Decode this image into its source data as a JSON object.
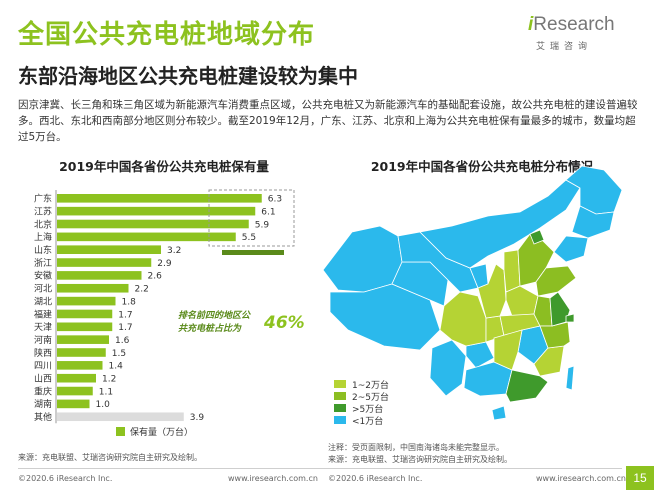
{
  "title": "全国公共充电桩地域分布",
  "subtitle": "东部沿海地区公共充电桩建设较为集中",
  "logo": {
    "main": "Research",
    "i": "i",
    "sub": "艾瑞咨询"
  },
  "description": "因京津冀、长三角和珠三角区域为新能源汽车消费重点区域，公共充电桩又为新能源汽车的基础配套设施，故公共充电桩的建设普遍较多。西北、东北和西南部分地区则分布较少。截至2019年12月，广东、江苏、北京和上海为公共充电桩保有量最多的城市，数量均超过5万台。",
  "bar_panel": {
    "title": "2019年中国各省份公共充电桩保有量",
    "annotation": "排名前四的地区公共充电桩占比为",
    "annotation_value": "46%",
    "legend": "保有量（万台）",
    "source": "来源：充电联盟、艾瑞咨询研究院自主研究及绘制。"
  },
  "map_panel": {
    "title": "2019年中国各省份公共充电桩分布情况",
    "legend": [
      {
        "label": "1~2万台",
        "color": "#b5d334"
      },
      {
        "label": "2~5万台",
        "color": "#8cbe22"
      },
      {
        "label": ">5万台",
        "color": "#3f9a2c"
      },
      {
        "label": "<1万台",
        "color": "#2bb9ec"
      }
    ],
    "note": "注释：受页面限制，中国南海诸岛未能完整显示。",
    "source": "来源：充电联盟、艾瑞咨询研究院自主研究及绘制。"
  },
  "footer": {
    "left": "©2020.6 iResearch Inc.",
    "mid": "www.iresearch.com.cn",
    "left2": "©2020.6 iResearch Inc.",
    "mid2": "www.iresearch.com.cn",
    "page": "15"
  },
  "colors": {
    "accent": "#8dc21f",
    "bar": "#8dc21f",
    "other_bar": "#dcdcdc",
    "map_low": "#2bb9ec"
  },
  "chart_data": {
    "type": "bar",
    "orientation": "horizontal",
    "title": "2019年中国各省份公共充电桩保有量",
    "ylabel": "保有量（万台）",
    "categories": [
      "广东",
      "江苏",
      "北京",
      "上海",
      "山东",
      "浙江",
      "安徽",
      "河北",
      "湖北",
      "福建",
      "天津",
      "河南",
      "陕西",
      "四川",
      "山西",
      "重庆",
      "湖南",
      "其他"
    ],
    "values": [
      6.3,
      6.1,
      5.9,
      5.5,
      3.2,
      2.9,
      2.6,
      2.2,
      1.8,
      1.7,
      1.7,
      1.6,
      1.5,
      1.4,
      1.2,
      1.1,
      1.0,
      3.9
    ],
    "grid": false,
    "legend_position": "bottom"
  }
}
